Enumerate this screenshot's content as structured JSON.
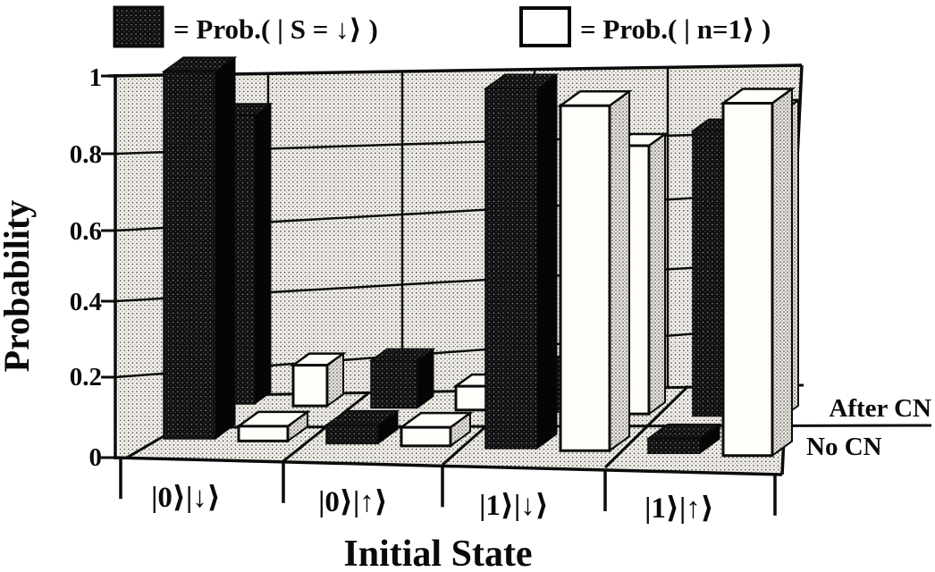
{
  "legend": {
    "items": [
      {
        "swatch": "dark-stippled",
        "label": "= Prob.( | S = ↓⟩ )"
      },
      {
        "swatch": "white",
        "label": "= Prob.( | n=1⟩ )"
      }
    ]
  },
  "y_axis": {
    "title": "Probability",
    "ticks": [
      "1",
      "0.8",
      "0.6",
      "0.4",
      "0.2",
      "0"
    ]
  },
  "x_axis": {
    "title": "Initial State",
    "categories": [
      "|0⟩|↓⟩",
      "|0⟩|↑⟩",
      "|1⟩|↓⟩",
      "|1⟩|↑⟩"
    ]
  },
  "depth_axis": {
    "rows": [
      "After CN",
      "No CN"
    ]
  },
  "chart_data": {
    "type": "bar",
    "projection": "3d",
    "title": "",
    "xlabel": "Initial State",
    "ylabel": "Probability",
    "ylim": [
      0,
      1
    ],
    "grid": true,
    "legend_position": "top",
    "categories": [
      "|0⟩|↓⟩",
      "|0⟩|↑⟩",
      "|1⟩|↓⟩",
      "|1⟩|↑⟩"
    ],
    "rows": [
      {
        "name": "No CN",
        "series": [
          {
            "name": "Prob.(|S=↓⟩)",
            "style": "dark",
            "values": [
              0.99,
              0.05,
              0.97,
              0.04
            ]
          },
          {
            "name": "Prob.(|n=1⟩)",
            "style": "white",
            "values": [
              0.04,
              0.05,
              0.93,
              0.95
            ]
          }
        ]
      },
      {
        "name": "After CN",
        "series": [
          {
            "name": "Prob.(|S=↓⟩)",
            "style": "dark",
            "values": [
              0.85,
              0.14,
              0.13,
              0.84
            ]
          },
          {
            "name": "Prob.(|n=1⟩)",
            "style": "white",
            "values": [
              0.12,
              0.07,
              0.79,
              0.9
            ]
          }
        ]
      }
    ]
  }
}
